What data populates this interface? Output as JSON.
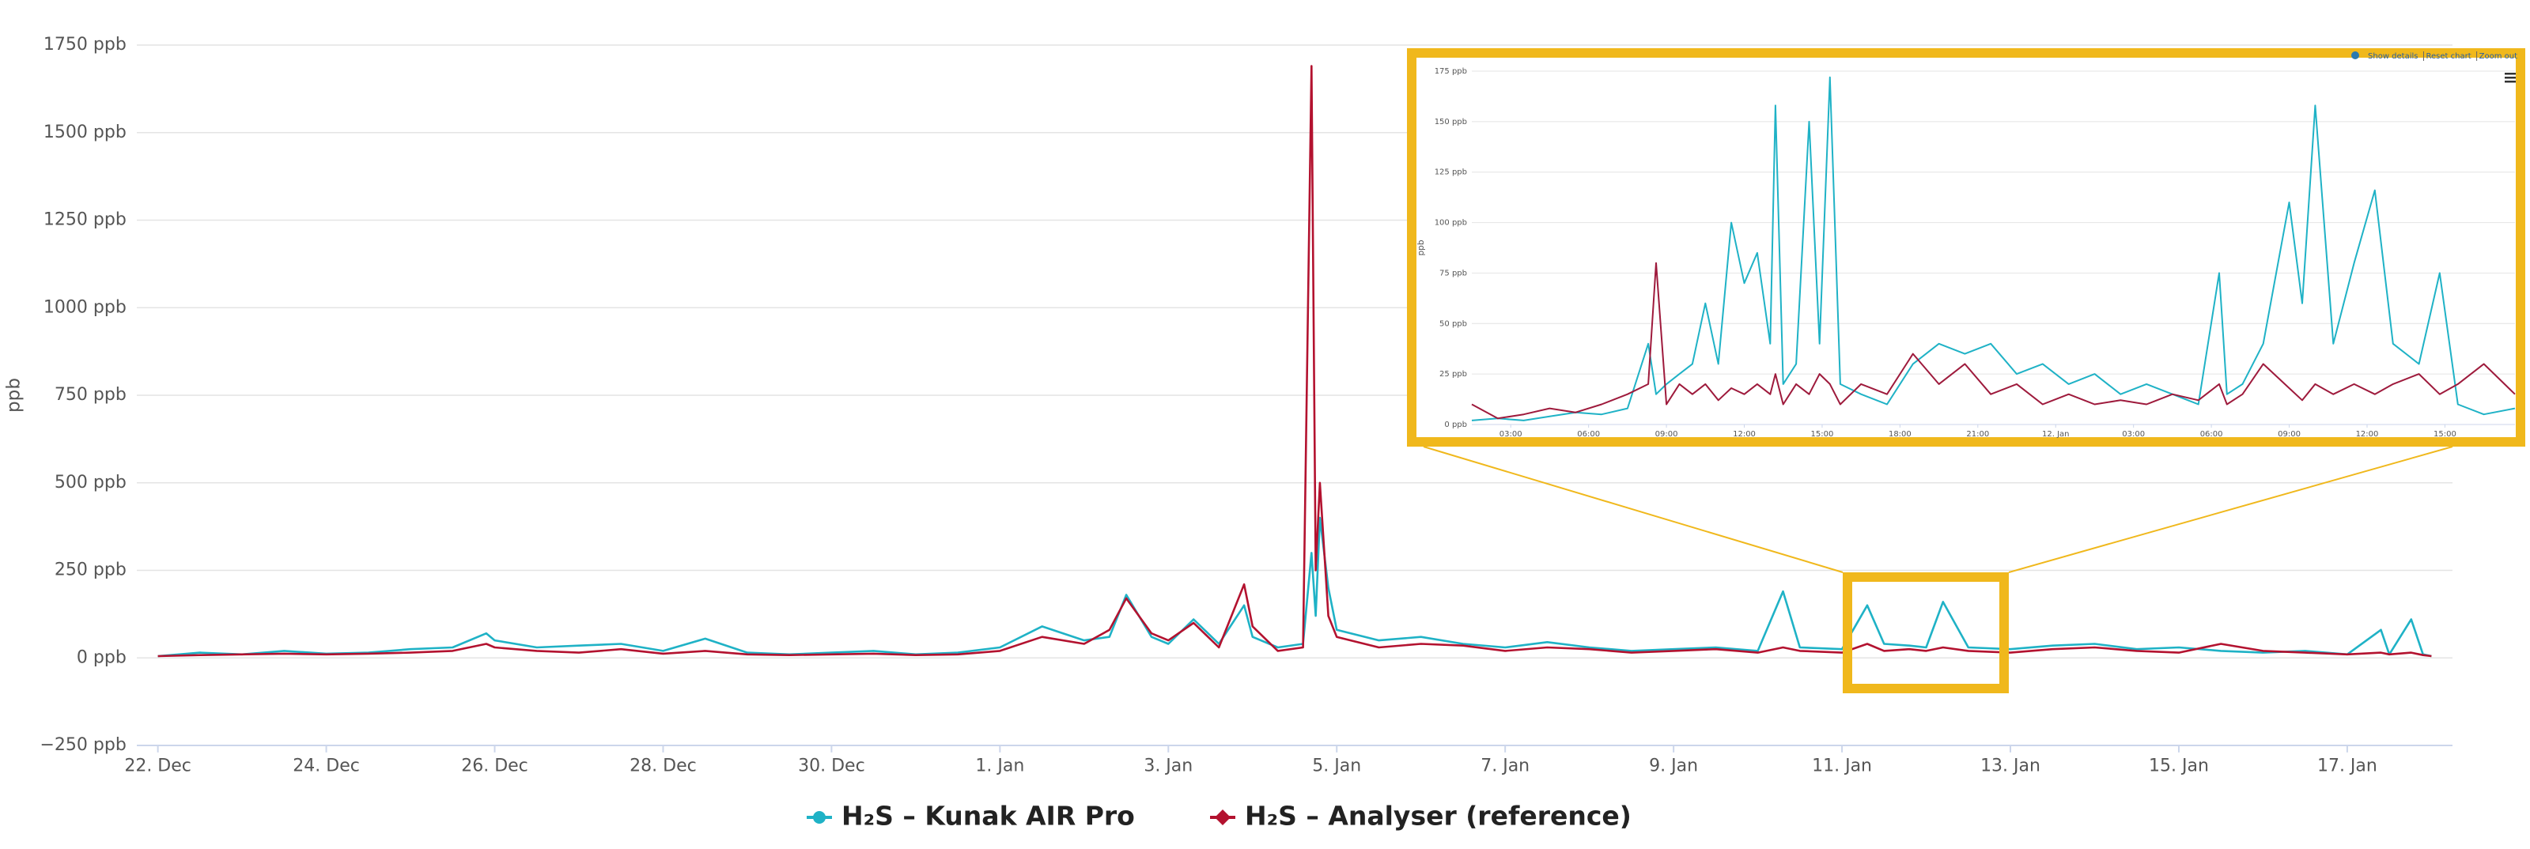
{
  "chart_data": [
    {
      "type": "line",
      "y_label": "ppb",
      "xlim": [
        -0.25,
        27.25
      ],
      "xticks": [
        {
          "value": 0,
          "label": "22. Dec"
        },
        {
          "value": 2,
          "label": "24. Dec"
        },
        {
          "value": 4,
          "label": "26. Dec"
        },
        {
          "value": 6,
          "label": "28. Dec"
        },
        {
          "value": 8,
          "label": "30. Dec"
        },
        {
          "value": 10,
          "label": "1. Jan"
        },
        {
          "value": 12,
          "label": "3. Jan"
        },
        {
          "value": 14,
          "label": "5. Jan"
        },
        {
          "value": 16,
          "label": "7. Jan"
        },
        {
          "value": 18,
          "label": "9. Jan"
        },
        {
          "value": 20,
          "label": "11. Jan"
        },
        {
          "value": 22,
          "label": "13. Jan"
        },
        {
          "value": 24,
          "label": "15. Jan"
        },
        {
          "value": 26,
          "label": "17. Jan"
        }
      ],
      "ylim": [
        -250,
        1750
      ],
      "yticks": [
        {
          "value": -250,
          "label": "−250 ppb"
        },
        {
          "value": 0,
          "label": "0 ppb"
        },
        {
          "value": 250,
          "label": "250 ppb"
        },
        {
          "value": 500,
          "label": "500 ppb"
        },
        {
          "value": 750,
          "label": "750 ppb"
        },
        {
          "value": 1000,
          "label": "1000 ppb"
        },
        {
          "value": 1250,
          "label": "1250 ppb"
        },
        {
          "value": 1500,
          "label": "1500 ppb"
        },
        {
          "value": 1750,
          "label": "1750 ppb"
        }
      ],
      "grid": true,
      "legend": "bottom",
      "x": [
        0,
        0.5,
        1,
        1.5,
        2,
        2.5,
        3,
        3.5,
        3.9,
        4,
        4.5,
        5,
        5.5,
        6,
        6.5,
        7,
        7.5,
        8,
        8.5,
        9,
        9.5,
        10,
        10.5,
        11,
        11.3,
        11.5,
        11.8,
        12,
        12.3,
        12.6,
        12.9,
        13,
        13.3,
        13.6,
        13.7,
        13.75,
        13.8,
        13.9,
        14,
        14.5,
        15,
        15.5,
        16,
        16.5,
        17,
        17.5,
        18,
        18.5,
        19,
        19.3,
        19.5,
        20,
        20.3,
        20.5,
        20.8,
        21,
        21.2,
        21.5,
        22,
        22.5,
        23,
        23.5,
        24,
        24.5,
        25,
        25.5,
        26,
        26.4,
        26.5,
        26.76,
        26.9,
        27
      ],
      "series": [
        {
          "name": "H₂S – Kunak AIR Pro",
          "color": "#1fb2c6",
          "values": [
            5,
            15,
            10,
            20,
            12,
            15,
            25,
            30,
            70,
            50,
            30,
            35,
            40,
            20,
            55,
            15,
            10,
            15,
            20,
            10,
            15,
            30,
            90,
            50,
            60,
            180,
            60,
            40,
            110,
            40,
            150,
            60,
            30,
            40,
            300,
            120,
            400,
            200,
            80,
            50,
            60,
            40,
            30,
            45,
            30,
            20,
            25,
            30,
            20,
            190,
            30,
            25,
            150,
            40,
            35,
            30,
            160,
            30,
            25,
            35,
            40,
            25,
            30,
            20,
            15,
            20,
            10,
            80,
            10,
            110,
            10,
            5
          ]
        },
        {
          "name": "H₂S – Analyser (reference)",
          "color": "#b3122f",
          "values": [
            5,
            8,
            10,
            12,
            10,
            12,
            15,
            20,
            40,
            30,
            20,
            15,
            25,
            12,
            20,
            10,
            8,
            10,
            12,
            8,
            10,
            20,
            60,
            40,
            80,
            170,
            70,
            50,
            100,
            30,
            210,
            90,
            20,
            30,
            1690,
            250,
            500,
            120,
            60,
            30,
            40,
            35,
            20,
            30,
            25,
            15,
            20,
            25,
            15,
            30,
            20,
            15,
            40,
            20,
            25,
            20,
            30,
            20,
            15,
            25,
            30,
            20,
            15,
            40,
            20,
            15,
            10,
            15,
            10,
            15,
            8,
            5
          ]
        }
      ]
    },
    {
      "type": "line",
      "y_label": "ppb",
      "toolbar": [
        "Show details",
        "Reset chart",
        "Zoom out"
      ],
      "xlim": [
        1.5,
        41.7
      ],
      "xticks": [
        {
          "value": 3,
          "label": "03:00"
        },
        {
          "value": 6,
          "label": "06:00"
        },
        {
          "value": 9,
          "label": "09:00"
        },
        {
          "value": 12,
          "label": "12:00"
        },
        {
          "value": 15,
          "label": "15:00"
        },
        {
          "value": 18,
          "label": "18:00"
        },
        {
          "value": 21,
          "label": "21:00"
        },
        {
          "value": 24,
          "label": "12. Jan"
        },
        {
          "value": 27,
          "label": "03:00"
        },
        {
          "value": 30,
          "label": "06:00"
        },
        {
          "value": 33,
          "label": "09:00"
        },
        {
          "value": 36,
          "label": "12:00"
        },
        {
          "value": 39,
          "label": "15:00"
        }
      ],
      "ylim": [
        0,
        175
      ],
      "yticks": [
        {
          "value": 0,
          "label": "0 ppb"
        },
        {
          "value": 25,
          "label": "25 ppb"
        },
        {
          "value": 50,
          "label": "50 ppb"
        },
        {
          "value": 75,
          "label": "75 ppb"
        },
        {
          "value": 100,
          "label": "100 ppb"
        },
        {
          "value": 125,
          "label": "125 ppb"
        },
        {
          "value": 150,
          "label": "150 ppb"
        },
        {
          "value": 175,
          "label": "175 ppb"
        }
      ],
      "grid": true,
      "x": [
        1.5,
        2.5,
        3.5,
        4.5,
        5.5,
        6.5,
        7.5,
        8.3,
        8.6,
        9,
        9.5,
        10,
        10.5,
        11,
        11.5,
        12,
        12.5,
        13,
        13.2,
        13.5,
        14,
        14.5,
        14.9,
        15.3,
        15.7,
        16.5,
        17.5,
        18.5,
        19.5,
        20.5,
        21.5,
        22.5,
        23.5,
        24.5,
        25.5,
        26.5,
        27.5,
        28.5,
        29.5,
        30.3,
        30.6,
        31.2,
        32,
        33,
        33.5,
        34,
        34.7,
        35.5,
        36.3,
        37,
        38,
        38.8,
        39.5,
        40.5,
        41.7
      ],
      "series": [
        {
          "color": "#1fb2c6",
          "values": [
            2,
            3,
            2,
            4,
            6,
            5,
            8,
            40,
            15,
            20,
            25,
            30,
            60,
            30,
            100,
            70,
            85,
            40,
            158,
            20,
            30,
            150,
            40,
            172,
            20,
            15,
            10,
            30,
            40,
            35,
            40,
            25,
            30,
            20,
            25,
            15,
            20,
            15,
            10,
            75,
            15,
            20,
            40,
            110,
            60,
            158,
            40,
            80,
            116,
            40,
            30,
            75,
            10,
            5,
            8
          ]
        },
        {
          "color": "#9e1a3c",
          "values": [
            10,
            3,
            5,
            8,
            6,
            10,
            15,
            20,
            80,
            10,
            20,
            15,
            20,
            12,
            18,
            15,
            20,
            15,
            25,
            10,
            20,
            15,
            25,
            20,
            10,
            20,
            15,
            35,
            20,
            30,
            15,
            20,
            10,
            15,
            10,
            12,
            10,
            15,
            12,
            20,
            10,
            15,
            30,
            18,
            12,
            20,
            15,
            20,
            15,
            20,
            25,
            15,
            20,
            30,
            15
          ]
        }
      ]
    }
  ]
}
